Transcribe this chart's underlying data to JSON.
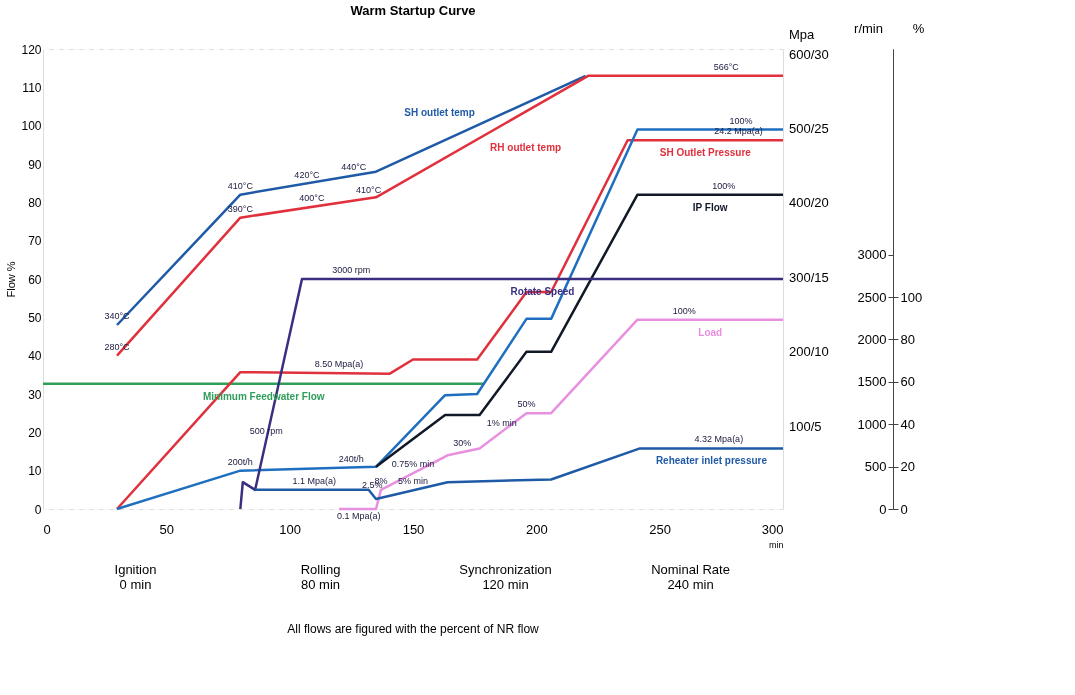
{
  "chart_data": {
    "type": "line",
    "title": "Warm Startup Curve",
    "xlabel": "min",
    "ylabel": "Flow %",
    "y2label": "r/min",
    "y3label": "%",
    "xlim": [
      0,
      300
    ],
    "xticks": [
      0,
      50,
      100,
      150,
      200,
      250,
      300
    ],
    "ylim": [
      0,
      120
    ],
    "yticks": [
      0,
      10,
      20,
      30,
      40,
      50,
      60,
      70,
      80,
      90,
      100,
      110,
      120
    ],
    "y2lim": [
      0,
      5425
    ],
    "y2ticks": [
      0,
      500,
      1000,
      1500,
      2000,
      2500,
      3000
    ],
    "y3lim": [
      0,
      217
    ],
    "y3ticks": [
      0,
      20,
      40,
      60,
      80,
      100
    ],
    "grid": "y",
    "series": [
      {
        "name": "SH outlet temp",
        "color": "#1f5aa6",
        "x": [
          30,
          80,
          135,
          220
        ],
        "values": [
          48,
          82,
          88,
          113
        ]
      },
      {
        "name": "RH outlet temp",
        "color": "#e0303c",
        "x": [
          30,
          80,
          135,
          221,
          300
        ],
        "values": [
          40,
          76,
          81.3,
          113,
          113
        ]
      },
      {
        "name": "Minimum Feedwater Flow",
        "color": "#2e9e5a",
        "x": [
          0,
          179
        ],
        "values": [
          32.7,
          32.7
        ]
      },
      {
        "name": "SH Outlet Pressure",
        "color": "#e0303c",
        "x": [
          30,
          80,
          140.6,
          150,
          176,
          196,
          206,
          237,
          300
        ],
        "values": [
          0,
          35.7,
          35.3,
          39,
          39,
          56.6,
          56.6,
          96.2,
          96.2
        ]
      },
      {
        "color": "#1f6fc0",
        "x": [
          30,
          80,
          135,
          163,
          176,
          196,
          206,
          241,
          300
        ],
        "values": [
          0,
          10,
          11,
          29.7,
          30,
          49.6,
          49.6,
          99,
          99
        ]
      },
      {
        "name": "IP Flow",
        "color": "#111827",
        "x": [
          135,
          163,
          177,
          196,
          206,
          241,
          300
        ],
        "values": [
          11,
          24.5,
          24.5,
          41,
          41,
          82,
          82
        ]
      },
      {
        "name": "Load",
        "color": "#e890e0",
        "x": [
          120,
          135,
          137,
          164,
          177,
          196,
          206,
          241,
          300
        ],
        "values": [
          0,
          0,
          5,
          14,
          15.8,
          25,
          25,
          49.4,
          49.4
        ]
      },
      {
        "name": "Rotate Speed",
        "color": "#3a2e80",
        "x": [
          80,
          81,
          86,
          105,
          300
        ],
        "values": [
          0,
          7,
          5,
          60,
          60
        ]
      },
      {
        "name": "Reheater inlet pressure",
        "color": "#1f5aa6",
        "x": [
          86,
          132,
          135,
          164,
          206,
          242,
          300
        ],
        "values": [
          5,
          5,
          2.6,
          7,
          7.7,
          15.8,
          15.8
        ]
      }
    ],
    "annotations": [
      {
        "text": "566°C",
        "x": 277,
        "y": 113
      },
      {
        "text": "410°C",
        "x": 80,
        "y": 82
      },
      {
        "text": "420°C",
        "x": 107,
        "y": 84.9
      },
      {
        "text": "440°C",
        "x": 126,
        "y": 87
      },
      {
        "text": "390°C",
        "x": 80,
        "y": 76
      },
      {
        "text": "400°C",
        "x": 109,
        "y": 78.8
      },
      {
        "text": "410°C",
        "x": 132,
        "y": 81
      },
      {
        "text": "340°C",
        "x": 30,
        "y": 48
      },
      {
        "text": "280°C",
        "x": 30,
        "y": 40
      },
      {
        "text": "3000 rpm",
        "x": 125,
        "y": 60
      },
      {
        "text": "8.50 Mpa(a)",
        "x": 120,
        "y": 35.4
      },
      {
        "text": "500 rpm",
        "x": 90.5,
        "y": 18
      },
      {
        "text": "200t/h",
        "x": 80,
        "y": 10
      },
      {
        "text": "240t/h",
        "x": 125,
        "y": 10.8
      },
      {
        "text": "1.1 Mpa(a)",
        "x": 110,
        "y": 5
      },
      {
        "text": "8%",
        "x": 137,
        "y": 5
      },
      {
        "text": "2.5%",
        "x": 133.5,
        "y": 3.8
      },
      {
        "text": "5% min",
        "x": 150,
        "y": 4.9
      },
      {
        "text": "0.1 Mpa(a)",
        "x": 128,
        "y": 0
      },
      {
        "text": "30%",
        "x": 170,
        "y": 14.8
      },
      {
        "text": "0.75% min",
        "x": 150,
        "y": 9.3
      },
      {
        "text": "50%",
        "x": 196,
        "y": 25
      },
      {
        "text": "1% min",
        "x": 186,
        "y": 20.2
      },
      {
        "text": "100%",
        "x": 260,
        "y": 49.4
      },
      {
        "text": "4.32 Mpa(a)",
        "x": 274,
        "y": 15.8
      },
      {
        "text": "100%",
        "x": 283,
        "y": 99
      },
      {
        "text": "24.2 Mpa(a)",
        "x": 282,
        "y": 96.2
      },
      {
        "text": "100%",
        "x": 276,
        "y": 82
      },
      "Mpa",
      "600/30",
      "500/25",
      "400/20",
      "300/15",
      "200/10",
      "100/5",
      "Ignition\n0 min",
      "Rolling\n80 min",
      "Synchronization\n120 min",
      "Nominal Rate\n240 min",
      "All flows are figured with the percent of NR flow"
    ]
  }
}
